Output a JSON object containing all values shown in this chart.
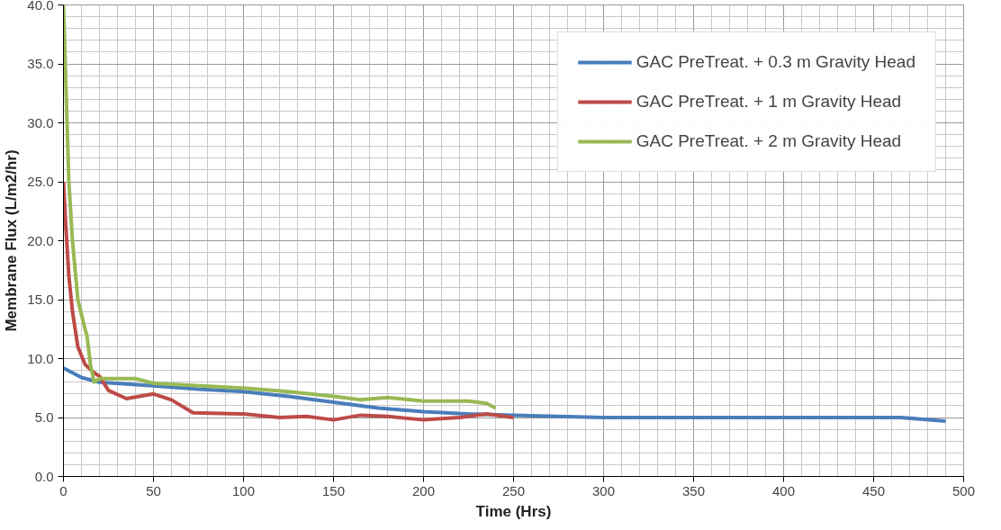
{
  "chart_data": {
    "type": "line",
    "xlabel": "Time (Hrs)",
    "ylabel": "Membrane Flux (L/m2/hr)",
    "xlim": [
      0,
      500
    ],
    "ylim": [
      0,
      40
    ],
    "xticks": [
      0,
      50,
      100,
      150,
      200,
      250,
      300,
      350,
      400,
      450,
      500
    ],
    "yticks": [
      {
        "value": 0,
        "label": "0.0"
      },
      {
        "value": 5,
        "label": "5.0"
      },
      {
        "value": 10,
        "label": "10.0"
      },
      {
        "value": 15,
        "label": "15.0"
      },
      {
        "value": 20,
        "label": "20.0"
      },
      {
        "value": 25,
        "label": "25.0"
      },
      {
        "value": 30,
        "label": "30.0"
      },
      {
        "value": 35,
        "label": "35.0"
      },
      {
        "value": 40,
        "label": "40.0"
      }
    ],
    "grid": true,
    "legend": "top right",
    "marker": "none",
    "line_style": "solid",
    "series": [
      {
        "name": "GAC PreTreat. + 0.3 m Gravity Head",
        "color": "#4a7ebb",
        "x": [
          0,
          10,
          20,
          50,
          75,
          100,
          125,
          150,
          175,
          200,
          225,
          250,
          300,
          350,
          400,
          465,
          490
        ],
        "values": [
          9.2,
          8.4,
          8.0,
          7.7,
          7.4,
          7.2,
          6.8,
          6.3,
          5.8,
          5.5,
          5.3,
          5.2,
          5.0,
          5.0,
          5.0,
          5.0,
          4.7
        ]
      },
      {
        "name": "GAC PreTreat. + 1 m Gravity Head",
        "color": "#be4b48",
        "x": [
          0,
          1,
          3,
          5,
          8,
          12,
          17,
          20,
          25,
          35,
          50,
          60,
          72,
          100,
          120,
          135,
          150,
          165,
          180,
          200,
          220,
          235,
          250
        ],
        "values": [
          25,
          22,
          17,
          14,
          11,
          9.5,
          8.8,
          8.5,
          7.3,
          6.6,
          7.0,
          6.5,
          5.4,
          5.3,
          5.0,
          5.1,
          4.8,
          5.2,
          5.1,
          4.8,
          5.0,
          5.3,
          5.0
        ]
      },
      {
        "name": "GAC PreTreat. + 2 m Gravity Head",
        "color": "#98b954",
        "x": [
          0,
          2,
          3,
          5,
          8,
          12,
          13,
          15,
          17,
          20,
          40,
          50,
          100,
          125,
          150,
          165,
          180,
          200,
          225,
          235,
          240
        ],
        "values": [
          40,
          30,
          25,
          20,
          15,
          12.5,
          12,
          9.5,
          8.0,
          8.3,
          8.3,
          7.9,
          7.5,
          7.2,
          6.8,
          6.5,
          6.7,
          6.4,
          6.4,
          6.2,
          5.8
        ]
      }
    ]
  }
}
